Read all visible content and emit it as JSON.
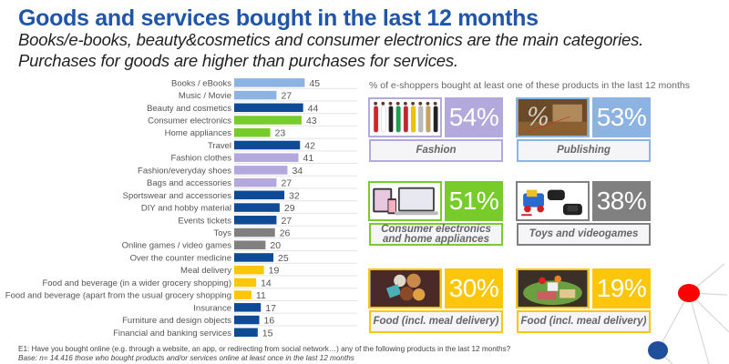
{
  "header": {
    "title": "Goods and services bought in the last 12 months",
    "subtitle_line1": "Books/e-books, beauty&cosmetics and consumer electronics are the main categories.",
    "subtitle_line2": "Purchases for goods are higher than purchases for services."
  },
  "colors": {
    "title": "#1f56a8",
    "publishing": "#8db3e2",
    "services": "#0e4a96",
    "electronics": "#77cc2a",
    "fashion": "#b3a9dc",
    "toys": "#808080",
    "food": "#fdc60a",
    "network_red": "#ff0000",
    "network_blue": "#1f4f9c"
  },
  "chart_data": {
    "type": "bar",
    "orientation": "horizontal",
    "title": "",
    "xlabel": "",
    "ylabel": "",
    "xlim": [
      0,
      50
    ],
    "grid": false,
    "categories": [
      "Books / eBooks",
      "Music / Movie",
      "Beauty and cosmetics",
      "Consumer electronics",
      "Home appliances",
      "Travel",
      "Fashion clothes",
      "Fashion/everyday shoes",
      "Bags and accessories",
      "Sportswear and accessories",
      "DIY and hobby material",
      "Events tickets",
      "Toys",
      "Online games / video games",
      "Over the counter medicine",
      "Meal delivery",
      "Food and beverage (in a wider grocery shopping)",
      "Food and beverage (apart from the usual grocery shopping",
      "Insurance",
      "Furniture and design objects",
      "Financial and banking services"
    ],
    "values": [
      45,
      27,
      44,
      43,
      23,
      42,
      41,
      34,
      27,
      32,
      29,
      27,
      26,
      20,
      25,
      19,
      14,
      11,
      17,
      16,
      15
    ],
    "groups": [
      "publishing",
      "publishing",
      "services",
      "electronics",
      "electronics",
      "services",
      "fashion",
      "fashion",
      "fashion",
      "services",
      "services",
      "services",
      "toys",
      "toys",
      "services",
      "food",
      "food",
      "food",
      "services",
      "services",
      "services"
    ]
  },
  "panel": {
    "note": "% of e-shoppers bought at least one of these products in the last 12 months",
    "tiles": [
      {
        "label": "Fashion",
        "percent": "54%",
        "group": "fashion",
        "image": "fashion-models-image"
      },
      {
        "label": "Publishing",
        "percent": "53%",
        "group": "publishing",
        "image": "books-image"
      },
      {
        "label": "Consumer electronics and home appliances",
        "percent": "51%",
        "group": "electronics",
        "image": "electronics-devices-image"
      },
      {
        "label": "Toys and videogames",
        "percent": "38%",
        "group": "toys",
        "image": "toys-gamepads-image"
      },
      {
        "label": "Food (incl. meal delivery)",
        "percent": "30%",
        "group": "food",
        "image": "meal-delivery-image"
      },
      {
        "label": "Food (incl. meal delivery)",
        "percent": "19%",
        "group": "food",
        "image": "groceries-image"
      }
    ]
  },
  "footer": {
    "question": "E1: Have you bought online (e.g. through a website, an app, or redirecting from social network…) any of the following products in the last 12 months?",
    "base": "Base: n= 14.416 those who bought products and/or services online at least once in the last 12 months"
  }
}
